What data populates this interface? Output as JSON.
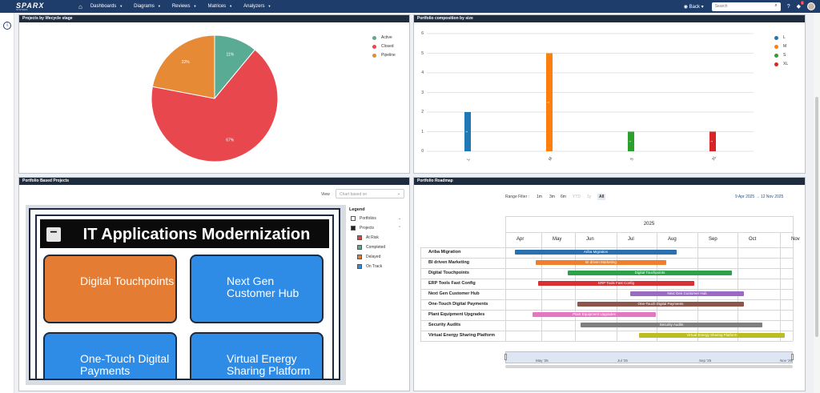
{
  "app": {
    "logo": "SPARX",
    "logo_sub": "SYSTEMS",
    "nav": [
      "Dashboards",
      "Diagrams",
      "Reviews",
      "Matrices",
      "Analyzers"
    ],
    "back_label": "Back",
    "search_placeholder": "Search",
    "notification_count": "1",
    "rail_icon": "i"
  },
  "panels": {
    "lifecycle": {
      "title": "Projects by lifecycle stage",
      "chart_data": {
        "type": "pie",
        "categories": [
          "Active",
          "Closed",
          "Pipeline"
        ],
        "values": [
          11,
          67,
          22
        ],
        "labels": [
          "11%",
          "67%",
          "22%"
        ],
        "colors": [
          "#5aab94",
          "#e7474d",
          "#e68a36"
        ],
        "legend": "top-right"
      }
    },
    "composition": {
      "title": "Portfolio composition by size",
      "chart_data": {
        "type": "bar",
        "categories": [
          "L",
          "M",
          "S",
          "XL"
        ],
        "values": [
          2,
          5,
          1,
          1
        ],
        "bar_labels": [
          "2",
          "5",
          "1",
          "1"
        ],
        "colors": [
          "#1f77b4",
          "#ff7f0e",
          "#2ca02c",
          "#d62728"
        ],
        "ylim": [
          0,
          6
        ],
        "yticks": [
          "0",
          "1",
          "2",
          "3",
          "4",
          "5",
          "6"
        ],
        "grid": true,
        "legend": "top-right"
      }
    },
    "projects": {
      "title": "Portfolio Based Projects",
      "view_label": "View",
      "view_placeholder": "Chart based on",
      "diagram_title": "IT Applications Modernization",
      "tiles": [
        {
          "text": "Digital Touchpoints",
          "color": "orange"
        },
        {
          "text": "Next Gen Customer Hub",
          "color": "blue"
        },
        {
          "text": "One-Touch Digital Payments",
          "color": "blue"
        },
        {
          "text": "Virtual Energy Sharing Platform",
          "color": "blue"
        }
      ],
      "legend_title": "Legend",
      "legend": [
        {
          "label": "Portfolios",
          "color": "#ffffff",
          "chev": "⌄"
        },
        {
          "label": "Projects",
          "color": "#222222",
          "chev": "⌃"
        },
        {
          "label": "At Risk",
          "color": "#d9484f",
          "chev": ""
        },
        {
          "label": "Completed",
          "color": "#5aab94",
          "chev": ""
        },
        {
          "label": "Delayed",
          "color": "#e47d33",
          "chev": ""
        },
        {
          "label": "On Track",
          "color": "#2f8ce6",
          "chev": ""
        }
      ]
    },
    "roadmap": {
      "title": "Portfolio Roadmap",
      "range_filter_label": "Range Filter :",
      "range_buttons": [
        "1m",
        "3m",
        "6m",
        "YTD",
        "1y",
        "All"
      ],
      "range_from": "9 Apr 2025",
      "range_arrow": "→",
      "range_to": "12 Nov 2025",
      "year": "2025",
      "months": [
        "Apr",
        "May",
        "Jun",
        "Jul",
        "Aug",
        "Sep",
        "Oct",
        "Nov"
      ],
      "navigator_ticks": [
        "May '25",
        "Jul '25",
        "Sep '25",
        "Nov '25"
      ],
      "projects": [
        {
          "name": "Ariba Migration",
          "color": "#2a6fb0"
        },
        {
          "name": "BI driven Marketing",
          "color": "#f07f2c"
        },
        {
          "name": "Digital Touchpoints",
          "color": "#2ca14a"
        },
        {
          "name": "ERP Tools Fast Config",
          "color": "#d73035"
        },
        {
          "name": "Next Gen Customer Hub",
          "color": "#9a6bc3"
        },
        {
          "name": "One-Touch Digital Payments",
          "color": "#8c564b"
        },
        {
          "name": "Plant Equipment Upgrades",
          "color": "#e377c2"
        },
        {
          "name": "Security Audits",
          "color": "#7f7f7f"
        },
        {
          "name": "Virtual Energy Sharing Platform",
          "color": "#bcbd22"
        }
      ]
    }
  }
}
